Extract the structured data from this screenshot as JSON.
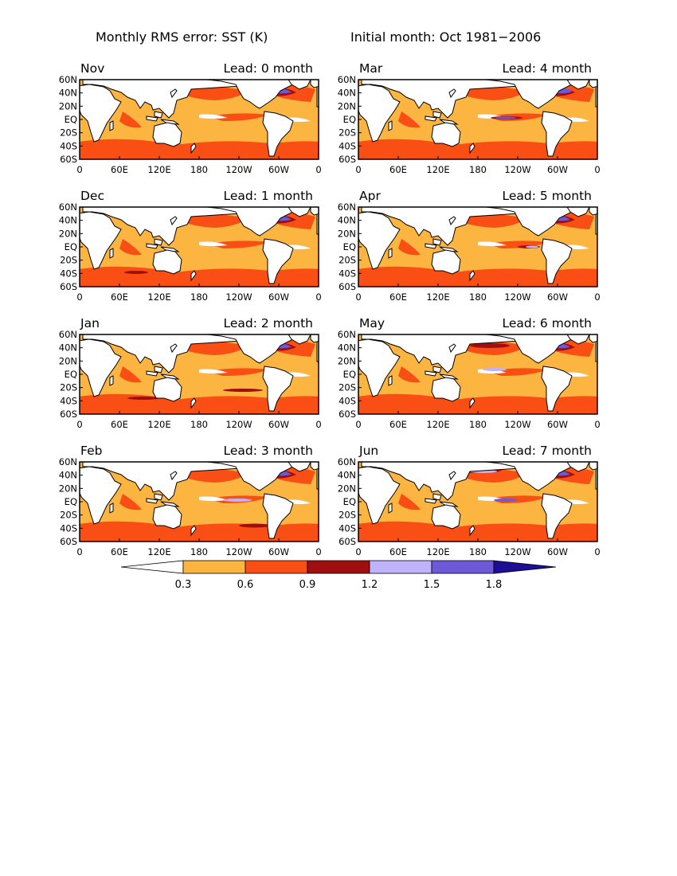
{
  "figure": {
    "title_left": "Monthly RMS error: SST (K)",
    "title_right": "Initial month: Oct 1981−2006"
  },
  "axes": {
    "lat_labels": [
      "60N",
      "40N",
      "20N",
      "EQ",
      "20S",
      "40S",
      "60S"
    ],
    "lon_labels": [
      "0",
      "60E",
      "120E",
      "180",
      "120W",
      "60W",
      "0"
    ]
  },
  "panels": [
    {
      "month": "Nov",
      "lead": "Lead: 0 month"
    },
    {
      "month": "Mar",
      "lead": "Lead: 4 month"
    },
    {
      "month": "Dec",
      "lead": "Lead: 1 month"
    },
    {
      "month": "Apr",
      "lead": "Lead: 5 month"
    },
    {
      "month": "Jan",
      "lead": "Lead: 2 month"
    },
    {
      "month": "May",
      "lead": "Lead: 6 month"
    },
    {
      "month": "Feb",
      "lead": "Lead: 3 month"
    },
    {
      "month": "Jun",
      "lead": "Lead: 7 month"
    }
  ],
  "colorbar": {
    "levels": [
      "0.3",
      "0.6",
      "0.9",
      "1.2",
      "1.5",
      "1.8"
    ],
    "colors": [
      "#ffffff",
      "#fdb542",
      "#f94e14",
      "#a00f0f",
      "#c0b2fb",
      "#6e5ad8",
      "#1e0e96"
    ]
  },
  "map_colors": {
    "land": "#ffffff",
    "low": "#fdb542",
    "mid": "#f94e14",
    "high": "#a00f0f",
    "vhigh": "#c0b2fb",
    "vvhigh": "#6e5ad8",
    "coast": "#000000"
  }
}
